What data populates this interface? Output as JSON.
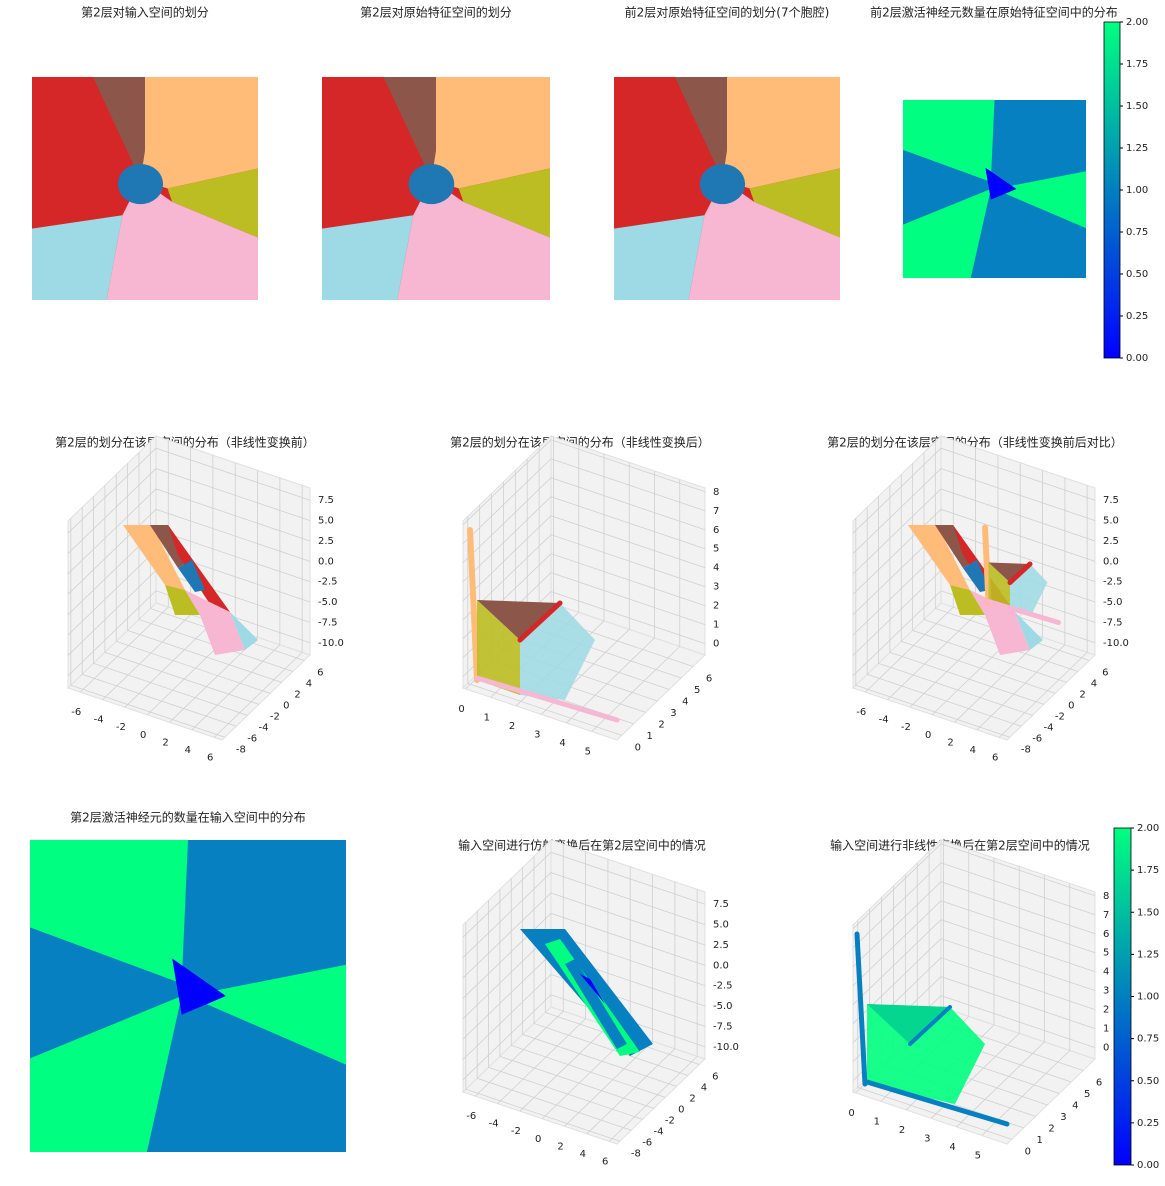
{
  "chart_data": [
    {
      "type": "region-map",
      "title": "第2层对输入空间的划分"
    },
    {
      "type": "region-map",
      "title": "第2层对原始特征空间的划分"
    },
    {
      "type": "region-map",
      "title": "前2层对原始特征空间的划分(7个胞腔)"
    },
    {
      "type": "count-map",
      "title": "前2层激活神经元数量在原始特征空间中的分布",
      "colorbar": {
        "ylim": [
          0,
          2
        ],
        "yticks": [
          {
            "value": 0,
            "label": "0.00"
          },
          {
            "value": 0.25,
            "label": "0.25"
          },
          {
            "value": 0.5,
            "label": "0.50"
          },
          {
            "value": 0.75,
            "label": "0.75"
          },
          {
            "value": 1,
            "label": "1.00"
          },
          {
            "value": 1.25,
            "label": "1.25"
          },
          {
            "value": 1.5,
            "label": "1.50"
          },
          {
            "value": 1.75,
            "label": "1.75"
          },
          {
            "value": 2,
            "label": "2.00"
          }
        ]
      }
    },
    {
      "type": "surface3d",
      "title": "第2层的划分在该层空间的分布（非线性变换前）",
      "xlim": [
        -7.1,
        6.7
      ],
      "ylim": [
        -8.5,
        7
      ],
      "zlim": [
        -11.5,
        9
      ],
      "xticks": [
        -6,
        -4,
        -2,
        0,
        2,
        4,
        6
      ],
      "yticks": [
        -8,
        -6,
        -4,
        -2,
        0,
        2,
        4,
        6
      ],
      "zticks": [
        {
          "value": -10,
          "label": "-10.0"
        },
        -7.5,
        {
          "value": -5,
          "label": "-5.0"
        },
        -2.5,
        {
          "value": 0,
          "label": "0.0"
        },
        2.5,
        {
          "value": 5,
          "label": "5.0"
        },
        7.5
      ]
    },
    {
      "type": "surface3d",
      "title": "第2层的划分在该层空间的分布（非线性变换后）",
      "xlim": [
        -0.1,
        6
      ],
      "ylim": [
        -0.4,
        7
      ],
      "zlim": [
        -0.6,
        8.2
      ],
      "xticks": [
        0,
        1,
        2,
        3,
        4,
        5
      ],
      "yticks": [
        0,
        1,
        2,
        3,
        4,
        5,
        6
      ],
      "zticks": [
        0,
        1,
        2,
        3,
        4,
        5,
        6,
        7,
        8
      ]
    },
    {
      "type": "surface3d",
      "title": "第2层的划分在该层空间的分布（非线性变换前后对比）",
      "xlim": [
        -7.1,
        6.7
      ],
      "ylim": [
        -8.5,
        7
      ],
      "zlim": [
        -11.5,
        9
      ],
      "xticks": [
        -6,
        -4,
        -2,
        0,
        2,
        4,
        6
      ],
      "yticks": [
        -8,
        -6,
        -4,
        -2,
        0,
        2,
        4,
        6
      ],
      "zticks": [
        {
          "value": -10,
          "label": "-10.0"
        },
        -7.5,
        {
          "value": -5,
          "label": "-5.0"
        },
        -2.5,
        {
          "value": 0,
          "label": "0.0"
        },
        2.5,
        {
          "value": 5,
          "label": "5.0"
        },
        7.5
      ]
    },
    {
      "type": "count-map",
      "title": "第2层激活神经元的数量在输入空间中的分布"
    },
    {
      "type": "surface3d",
      "title": "输入空间进行仿射变换后在第2层空间中的情况",
      "xlim": [
        -7.1,
        6.7
      ],
      "ylim": [
        -8.5,
        7
      ],
      "zlim": [
        -11.5,
        9
      ],
      "xticks": [
        -6,
        -4,
        -2,
        0,
        2,
        4,
        6
      ],
      "yticks": [
        -8,
        -6,
        -4,
        -2,
        0,
        2,
        4,
        6
      ],
      "zticks": [
        {
          "value": -10,
          "label": "-10.0"
        },
        -7.5,
        {
          "value": -5,
          "label": "-5.0"
        },
        -2.5,
        {
          "value": 0,
          "label": "0.0"
        },
        2.5,
        {
          "value": 5,
          "label": "5.0"
        },
        7.5
      ]
    },
    {
      "type": "surface3d",
      "title": "输入空间进行非线性变换后在第2层空间中的情况",
      "xlim": [
        -0.1,
        6
      ],
      "ylim": [
        -0.4,
        7
      ],
      "zlim": [
        -0.6,
        8.2
      ],
      "xticks": [
        0,
        1,
        2,
        3,
        4,
        5
      ],
      "yticks": [
        0,
        1,
        2,
        3,
        4,
        5,
        6
      ],
      "zticks": [
        0,
        1,
        2,
        3,
        4,
        5,
        6,
        7,
        8
      ],
      "colorbar": {
        "ylim": [
          0,
          2
        ],
        "yticks": [
          {
            "value": 0,
            "label": "0.00"
          },
          {
            "value": 0.25,
            "label": "0.25"
          },
          {
            "value": 0.5,
            "label": "0.50"
          },
          {
            "value": 0.75,
            "label": "0.75"
          },
          {
            "value": 1,
            "label": "1.00"
          },
          {
            "value": 1.25,
            "label": "1.25"
          },
          {
            "value": 1.5,
            "label": "1.50"
          },
          {
            "value": 1.75,
            "label": "1.75"
          },
          {
            "value": 2,
            "label": "2.00"
          }
        ]
      }
    }
  ]
}
